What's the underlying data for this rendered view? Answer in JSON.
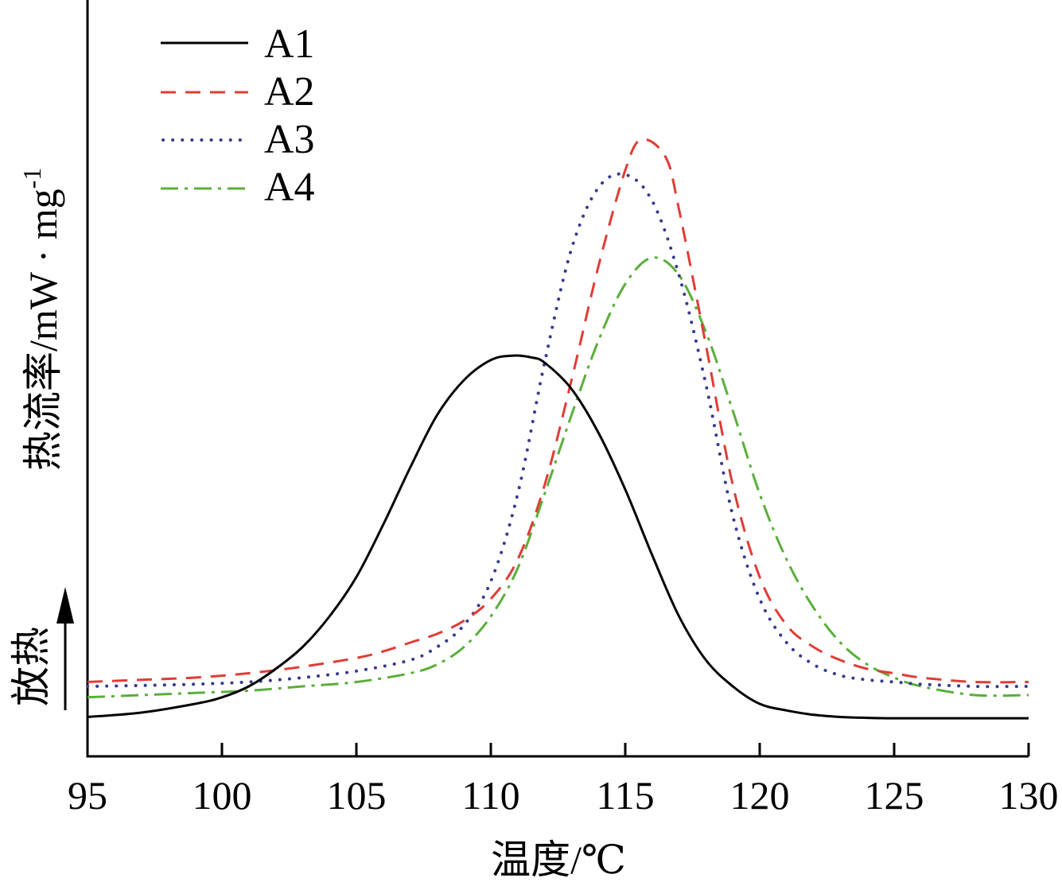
{
  "chart_data": {
    "type": "line",
    "xlabel": "温度/℃",
    "ylabel": "热流率/mW · mg",
    "ylabel_sup": "-1",
    "exotherm_label": "放热",
    "xlim": [
      95,
      130
    ],
    "xticks": [
      95,
      100,
      105,
      110,
      115,
      120,
      125,
      130
    ],
    "tick_labels": [
      "95",
      "100",
      "105",
      "110",
      "115",
      "120",
      "125",
      "130"
    ],
    "y_ticks_shown": false,
    "grid": false,
    "legend_position": "top-left",
    "series": [
      {
        "name": "A1",
        "color": "#000000",
        "dash": "solid",
        "x": [
          95,
          97,
          99,
          100,
          101,
          102,
          103,
          104,
          105,
          106,
          107,
          108,
          109,
          110,
          110.8,
          111.5,
          112,
          113,
          114,
          115,
          116,
          117,
          118,
          119,
          120,
          121,
          122,
          123,
          124,
          125,
          126,
          128,
          130
        ],
        "y": [
          0.09,
          0.1,
          0.12,
          0.135,
          0.16,
          0.2,
          0.25,
          0.32,
          0.41,
          0.53,
          0.66,
          0.78,
          0.86,
          0.906,
          0.916,
          0.912,
          0.9,
          0.84,
          0.74,
          0.61,
          0.46,
          0.32,
          0.22,
          0.16,
          0.12,
          0.105,
          0.095,
          0.09,
          0.088,
          0.087,
          0.087,
          0.087,
          0.087
        ]
      },
      {
        "name": "A2",
        "color": "#e03c36",
        "dash": "long-dash",
        "x": [
          95,
          97,
          99,
          101,
          103,
          105,
          106,
          107,
          108,
          109,
          110,
          111,
          112,
          113,
          114,
          115,
          115.6,
          116.5,
          117,
          118,
          119,
          120,
          121,
          122,
          123,
          124,
          125,
          126,
          128,
          130
        ],
        "y": [
          0.17,
          0.175,
          0.18,
          0.19,
          0.205,
          0.225,
          0.24,
          0.26,
          0.28,
          0.31,
          0.36,
          0.45,
          0.62,
          0.86,
          1.12,
          1.34,
          1.41,
          1.37,
          1.25,
          0.94,
          0.62,
          0.41,
          0.3,
          0.25,
          0.22,
          0.2,
          0.19,
          0.18,
          0.17,
          0.17
        ]
      },
      {
        "name": "A3",
        "color": "#3a3a8f",
        "dash": "dotted",
        "x": [
          95,
          97,
          99,
          101,
          103,
          105,
          107,
          108,
          109,
          110,
          111,
          112,
          113,
          114,
          115,
          116,
          117,
          118,
          119,
          120,
          121,
          122,
          123,
          124,
          125,
          126,
          128,
          130
        ],
        "y": [
          0.16,
          0.162,
          0.165,
          0.17,
          0.18,
          0.195,
          0.22,
          0.25,
          0.3,
          0.4,
          0.6,
          0.9,
          1.16,
          1.3,
          1.33,
          1.27,
          1.1,
          0.85,
          0.55,
          0.36,
          0.26,
          0.21,
          0.185,
          0.175,
          0.17,
          0.165,
          0.16,
          0.16
        ]
      },
      {
        "name": "A4",
        "color": "#5aae3a",
        "dash": "dash-dot",
        "x": [
          95,
          97,
          99,
          101,
          103,
          105,
          107,
          108,
          109,
          110,
          111,
          112,
          113,
          114,
          115,
          116,
          117,
          118,
          119,
          120,
          121,
          122,
          123,
          124,
          125,
          126,
          128,
          130
        ],
        "y": [
          0.135,
          0.14,
          0.145,
          0.15,
          0.16,
          0.17,
          0.19,
          0.21,
          0.25,
          0.32,
          0.43,
          0.6,
          0.78,
          0.95,
          1.08,
          1.14,
          1.1,
          0.97,
          0.79,
          0.6,
          0.45,
          0.34,
          0.26,
          0.21,
          0.18,
          0.16,
          0.14,
          0.14
        ]
      }
    ]
  }
}
